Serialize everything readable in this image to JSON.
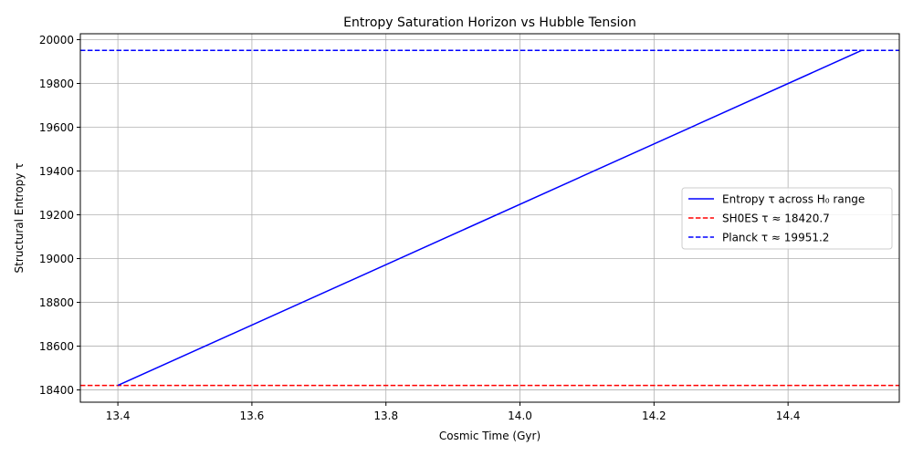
{
  "chart_data": {
    "type": "line",
    "title": "Entropy Saturation Horizon vs Hubble Tension",
    "xlabel": "Cosmic Time (Gyr)",
    "ylabel": "Structural Entropy τ",
    "xlim": [
      13.344,
      14.566
    ],
    "ylim": [
      18344,
      20027
    ],
    "xticks": [
      13.4,
      13.6,
      13.8,
      14.0,
      14.2,
      14.4
    ],
    "xtick_labels": [
      "13.4",
      "13.6",
      "13.8",
      "14.0",
      "14.2",
      "14.4"
    ],
    "yticks": [
      18400,
      18600,
      18800,
      19000,
      19200,
      19400,
      19600,
      19800,
      20000
    ],
    "ytick_labels": [
      "18400",
      "18600",
      "18800",
      "19000",
      "19200",
      "19400",
      "19600",
      "19800",
      "20000"
    ],
    "grid": true,
    "legend_position": "center-right",
    "series": [
      {
        "name": "Entropy τ across H₀ range",
        "style": "solid",
        "color": "#0000ff",
        "x": [
          13.4,
          14.51
        ],
        "y": [
          18420.7,
          19951.2
        ]
      }
    ],
    "hlines": [
      {
        "name": "SH0ES τ ≈ 18420.7",
        "y": 18420.7,
        "style": "dashed",
        "color": "#ff0000"
      },
      {
        "name": "Planck τ ≈ 19951.2",
        "y": 19951.2,
        "style": "dashed",
        "color": "#0000ff"
      }
    ]
  }
}
